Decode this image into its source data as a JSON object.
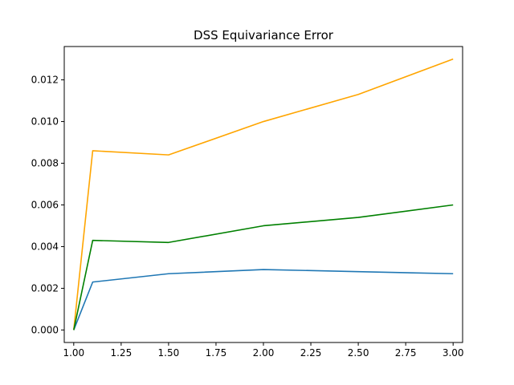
{
  "chart_data": {
    "type": "line",
    "title": "DSS Equivariance Error",
    "xlabel": "",
    "ylabel": "",
    "x": [
      1.0,
      1.1,
      1.5,
      2.0,
      2.5,
      3.0
    ],
    "xlim": [
      0.95,
      3.05
    ],
    "ylim": [
      -0.0006,
      0.0136
    ],
    "xticks": [
      1.0,
      1.25,
      1.5,
      1.75,
      2.0,
      2.25,
      2.5,
      2.75,
      3.0
    ],
    "xtick_labels": [
      "1.00",
      "1.25",
      "1.50",
      "1.75",
      "2.00",
      "2.25",
      "2.50",
      "2.75",
      "3.00"
    ],
    "yticks": [
      0.0,
      0.002,
      0.004,
      0.006,
      0.008,
      0.01,
      0.012
    ],
    "ytick_labels": [
      "0.000",
      "0.002",
      "0.004",
      "0.006",
      "0.008",
      "0.010",
      "0.012"
    ],
    "grid": false,
    "legend": "none",
    "series": [
      {
        "color": "#1f77b4",
        "values": [
          0.0,
          0.0023,
          0.0027,
          0.0029,
          0.0028,
          0.0027
        ]
      },
      {
        "color": "#ffa500",
        "values": [
          0.0,
          0.0086,
          0.0084,
          0.01,
          0.0113,
          0.013
        ]
      },
      {
        "color": "#008000",
        "values": [
          0.0,
          0.0043,
          0.0042,
          0.005,
          0.0054,
          0.006
        ]
      }
    ]
  }
}
